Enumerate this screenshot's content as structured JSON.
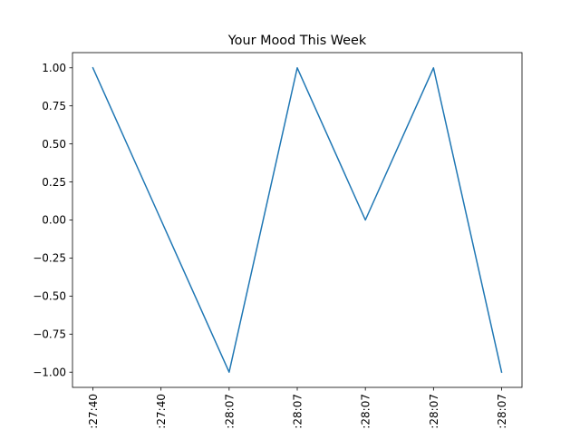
{
  "chart_data": {
    "type": "line",
    "title": "Your Mood This Week",
    "xlabel": "",
    "ylabel": "",
    "x": [
      ":27:40",
      ":27:40",
      ":28:07",
      ":28:07",
      ":28:07",
      ":28:07",
      ":28:07"
    ],
    "series": [
      {
        "values": [
          1,
          0,
          -1,
          1,
          0,
          1,
          -1
        ],
        "color": "#1f77b4"
      }
    ],
    "yticks": [
      "1.00",
      "0.75",
      "0.50",
      "0.25",
      "0.00",
      "−0.25",
      "−0.50",
      "−0.75",
      "−1.00"
    ],
    "ytick_values": [
      1,
      0.75,
      0.5,
      0.25,
      0,
      -0.25,
      -0.5,
      -0.75,
      -1
    ],
    "ylim": [
      -1.1,
      1.1
    ],
    "grid": false,
    "xtick_rotation": "vertical"
  }
}
